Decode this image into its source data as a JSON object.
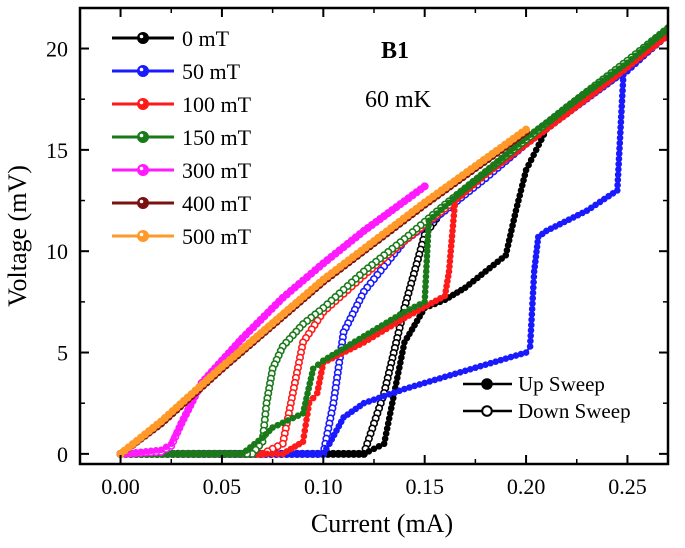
{
  "chart_data": {
    "type": "line",
    "title": "B1",
    "subtitle": "60 mK",
    "xlabel": "Current (mA)",
    "ylabel": "Voltage (mV)",
    "xlim": [
      -0.02,
      0.27
    ],
    "ylim": [
      -0.5,
      22
    ],
    "xticks": [
      0.0,
      0.05,
      0.1,
      0.15,
      0.2,
      0.25
    ],
    "xtick_labels": [
      "0.00",
      "0.05",
      "0.10",
      "0.15",
      "0.20",
      "0.25"
    ],
    "yticks": [
      0,
      5,
      10,
      15,
      20
    ],
    "ytick_labels": [
      "0",
      "5",
      "10",
      "15",
      "20"
    ],
    "legend_position": "top-left",
    "sweep_legend": {
      "position": "bottom-right",
      "entries": [
        {
          "label": "Up Sweep",
          "marker": "filled"
        },
        {
          "label": "Down Sweep",
          "marker": "open"
        }
      ]
    },
    "series": [
      {
        "name": "0 mT",
        "color": "#000000",
        "up": [
          [
            0.0,
            0.0
          ],
          [
            0.11,
            0.0
          ],
          [
            0.12,
            0.0
          ],
          [
            0.13,
            0.5
          ],
          [
            0.135,
            3.0
          ],
          [
            0.14,
            5.5
          ],
          [
            0.15,
            7.2
          ],
          [
            0.16,
            7.6
          ],
          [
            0.17,
            8.2
          ],
          [
            0.18,
            9.0
          ],
          [
            0.19,
            9.8
          ],
          [
            0.195,
            12.0
          ],
          [
            0.2,
            14.0
          ],
          [
            0.205,
            15.0
          ],
          [
            0.21,
            16.0
          ],
          [
            0.22,
            16.8
          ],
          [
            0.25,
            19.3
          ],
          [
            0.27,
            20.8
          ]
        ],
        "down": [
          [
            0.27,
            20.8
          ],
          [
            0.25,
            19.3
          ],
          [
            0.22,
            16.8
          ],
          [
            0.2,
            15.4
          ],
          [
            0.18,
            13.7
          ],
          [
            0.16,
            12.2
          ],
          [
            0.15,
            10.8
          ],
          [
            0.14,
            7.2
          ],
          [
            0.13,
            3.0
          ],
          [
            0.12,
            0.0
          ],
          [
            0.11,
            0.0
          ],
          [
            0.0,
            0.0
          ]
        ]
      },
      {
        "name": "50 mT",
        "color": "#1a1aff",
        "up": [
          [
            0.0,
            0.0
          ],
          [
            0.1,
            0.0
          ],
          [
            0.103,
            0.5
          ],
          [
            0.11,
            1.8
          ],
          [
            0.12,
            2.5
          ],
          [
            0.14,
            3.2
          ],
          [
            0.16,
            3.8
          ],
          [
            0.18,
            4.4
          ],
          [
            0.2,
            5.0
          ],
          [
            0.202,
            5.3
          ],
          [
            0.204,
            9.0
          ],
          [
            0.206,
            10.7
          ],
          [
            0.21,
            11.0
          ],
          [
            0.23,
            12.0
          ],
          [
            0.245,
            13.0
          ],
          [
            0.248,
            18.7
          ],
          [
            0.26,
            19.8
          ],
          [
            0.27,
            20.7
          ]
        ],
        "down": [
          [
            0.27,
            20.7
          ],
          [
            0.25,
            19.0
          ],
          [
            0.22,
            16.8
          ],
          [
            0.2,
            15.3
          ],
          [
            0.18,
            13.6
          ],
          [
            0.16,
            12.0
          ],
          [
            0.14,
            10.5
          ],
          [
            0.12,
            8.0
          ],
          [
            0.11,
            6.0
          ],
          [
            0.105,
            2.5
          ],
          [
            0.1,
            0.0
          ],
          [
            0.0,
            0.0
          ]
        ]
      },
      {
        "name": "100 mT",
        "color": "#ff1a1a",
        "up": [
          [
            0.0,
            0.0
          ],
          [
            0.08,
            0.0
          ],
          [
            0.09,
            0.6
          ],
          [
            0.093,
            2.5
          ],
          [
            0.097,
            3.0
          ],
          [
            0.1,
            4.5
          ],
          [
            0.12,
            5.5
          ],
          [
            0.14,
            6.7
          ],
          [
            0.16,
            7.8
          ],
          [
            0.162,
            9.0
          ],
          [
            0.165,
            12.5
          ],
          [
            0.18,
            13.8
          ],
          [
            0.2,
            15.3
          ],
          [
            0.22,
            16.8
          ],
          [
            0.25,
            19.1
          ],
          [
            0.27,
            20.7
          ]
        ],
        "down": [
          [
            0.27,
            20.7
          ],
          [
            0.25,
            19.1
          ],
          [
            0.22,
            16.8
          ],
          [
            0.2,
            15.3
          ],
          [
            0.18,
            13.8
          ],
          [
            0.16,
            12.1
          ],
          [
            0.14,
            10.5
          ],
          [
            0.12,
            8.8
          ],
          [
            0.1,
            7.0
          ],
          [
            0.09,
            5.5
          ],
          [
            0.085,
            3.0
          ],
          [
            0.08,
            0.5
          ],
          [
            0.07,
            0.0
          ],
          [
            0.0,
            0.0
          ]
        ]
      },
      {
        "name": "150 mT",
        "color": "#1a7a1a",
        "up": [
          [
            0.0,
            0.0
          ],
          [
            0.06,
            0.0
          ],
          [
            0.07,
            0.8
          ],
          [
            0.075,
            1.3
          ],
          [
            0.09,
            2.0
          ],
          [
            0.095,
            4.2
          ],
          [
            0.1,
            4.6
          ],
          [
            0.12,
            5.8
          ],
          [
            0.14,
            7.0
          ],
          [
            0.15,
            7.5
          ],
          [
            0.152,
            11.5
          ],
          [
            0.17,
            13.1
          ],
          [
            0.2,
            15.6
          ],
          [
            0.22,
            17.1
          ],
          [
            0.25,
            19.3
          ],
          [
            0.27,
            21.0
          ]
        ],
        "down": [
          [
            0.27,
            21.0
          ],
          [
            0.25,
            19.4
          ],
          [
            0.22,
            17.1
          ],
          [
            0.2,
            15.5
          ],
          [
            0.18,
            13.9
          ],
          [
            0.16,
            12.3
          ],
          [
            0.14,
            10.6
          ],
          [
            0.12,
            9.0
          ],
          [
            0.1,
            7.2
          ],
          [
            0.09,
            6.4
          ],
          [
            0.08,
            5.3
          ],
          [
            0.075,
            4.2
          ],
          [
            0.072,
            2.5
          ],
          [
            0.07,
            0.6
          ],
          [
            0.065,
            0.0
          ],
          [
            0.0,
            0.0
          ]
        ]
      },
      {
        "name": "300 mT",
        "color": "#ff1aff",
        "up": [
          [
            0.0,
            0.0
          ],
          [
            0.02,
            0.2
          ],
          [
            0.025,
            0.5
          ],
          [
            0.03,
            1.5
          ],
          [
            0.04,
            3.5
          ],
          [
            0.06,
            5.7
          ],
          [
            0.08,
            7.7
          ],
          [
            0.1,
            9.4
          ],
          [
            0.12,
            11.0
          ],
          [
            0.15,
            13.2
          ]
        ],
        "down": [
          [
            0.15,
            13.2
          ],
          [
            0.12,
            11.0
          ],
          [
            0.1,
            9.4
          ],
          [
            0.08,
            7.7
          ],
          [
            0.06,
            5.7
          ],
          [
            0.04,
            3.5
          ],
          [
            0.03,
            1.5
          ],
          [
            0.025,
            0.4
          ],
          [
            0.02,
            0.1
          ],
          [
            0.0,
            0.0
          ]
        ]
      },
      {
        "name": "400 mT",
        "color": "#7a1010",
        "up": [
          [
            0.0,
            0.0
          ],
          [
            0.02,
            1.5
          ],
          [
            0.05,
            4.2
          ],
          [
            0.08,
            6.8
          ],
          [
            0.1,
            8.5
          ],
          [
            0.15,
            12.3
          ],
          [
            0.2,
            15.9
          ]
        ],
        "down": [
          [
            0.2,
            15.9
          ],
          [
            0.15,
            12.3
          ],
          [
            0.1,
            8.5
          ],
          [
            0.05,
            4.2
          ],
          [
            0.02,
            1.5
          ],
          [
            0.0,
            0.0
          ]
        ]
      },
      {
        "name": "500 mT",
        "color": "#ff9a2a",
        "up": [
          [
            0.0,
            0.0
          ],
          [
            0.02,
            1.6
          ],
          [
            0.05,
            4.3
          ],
          [
            0.08,
            6.9
          ],
          [
            0.1,
            8.6
          ],
          [
            0.15,
            12.4
          ],
          [
            0.2,
            16.0
          ]
        ],
        "down": [
          [
            0.2,
            16.0
          ],
          [
            0.15,
            12.4
          ],
          [
            0.1,
            8.6
          ],
          [
            0.05,
            4.3
          ],
          [
            0.02,
            1.6
          ],
          [
            0.0,
            0.0
          ]
        ]
      }
    ]
  }
}
